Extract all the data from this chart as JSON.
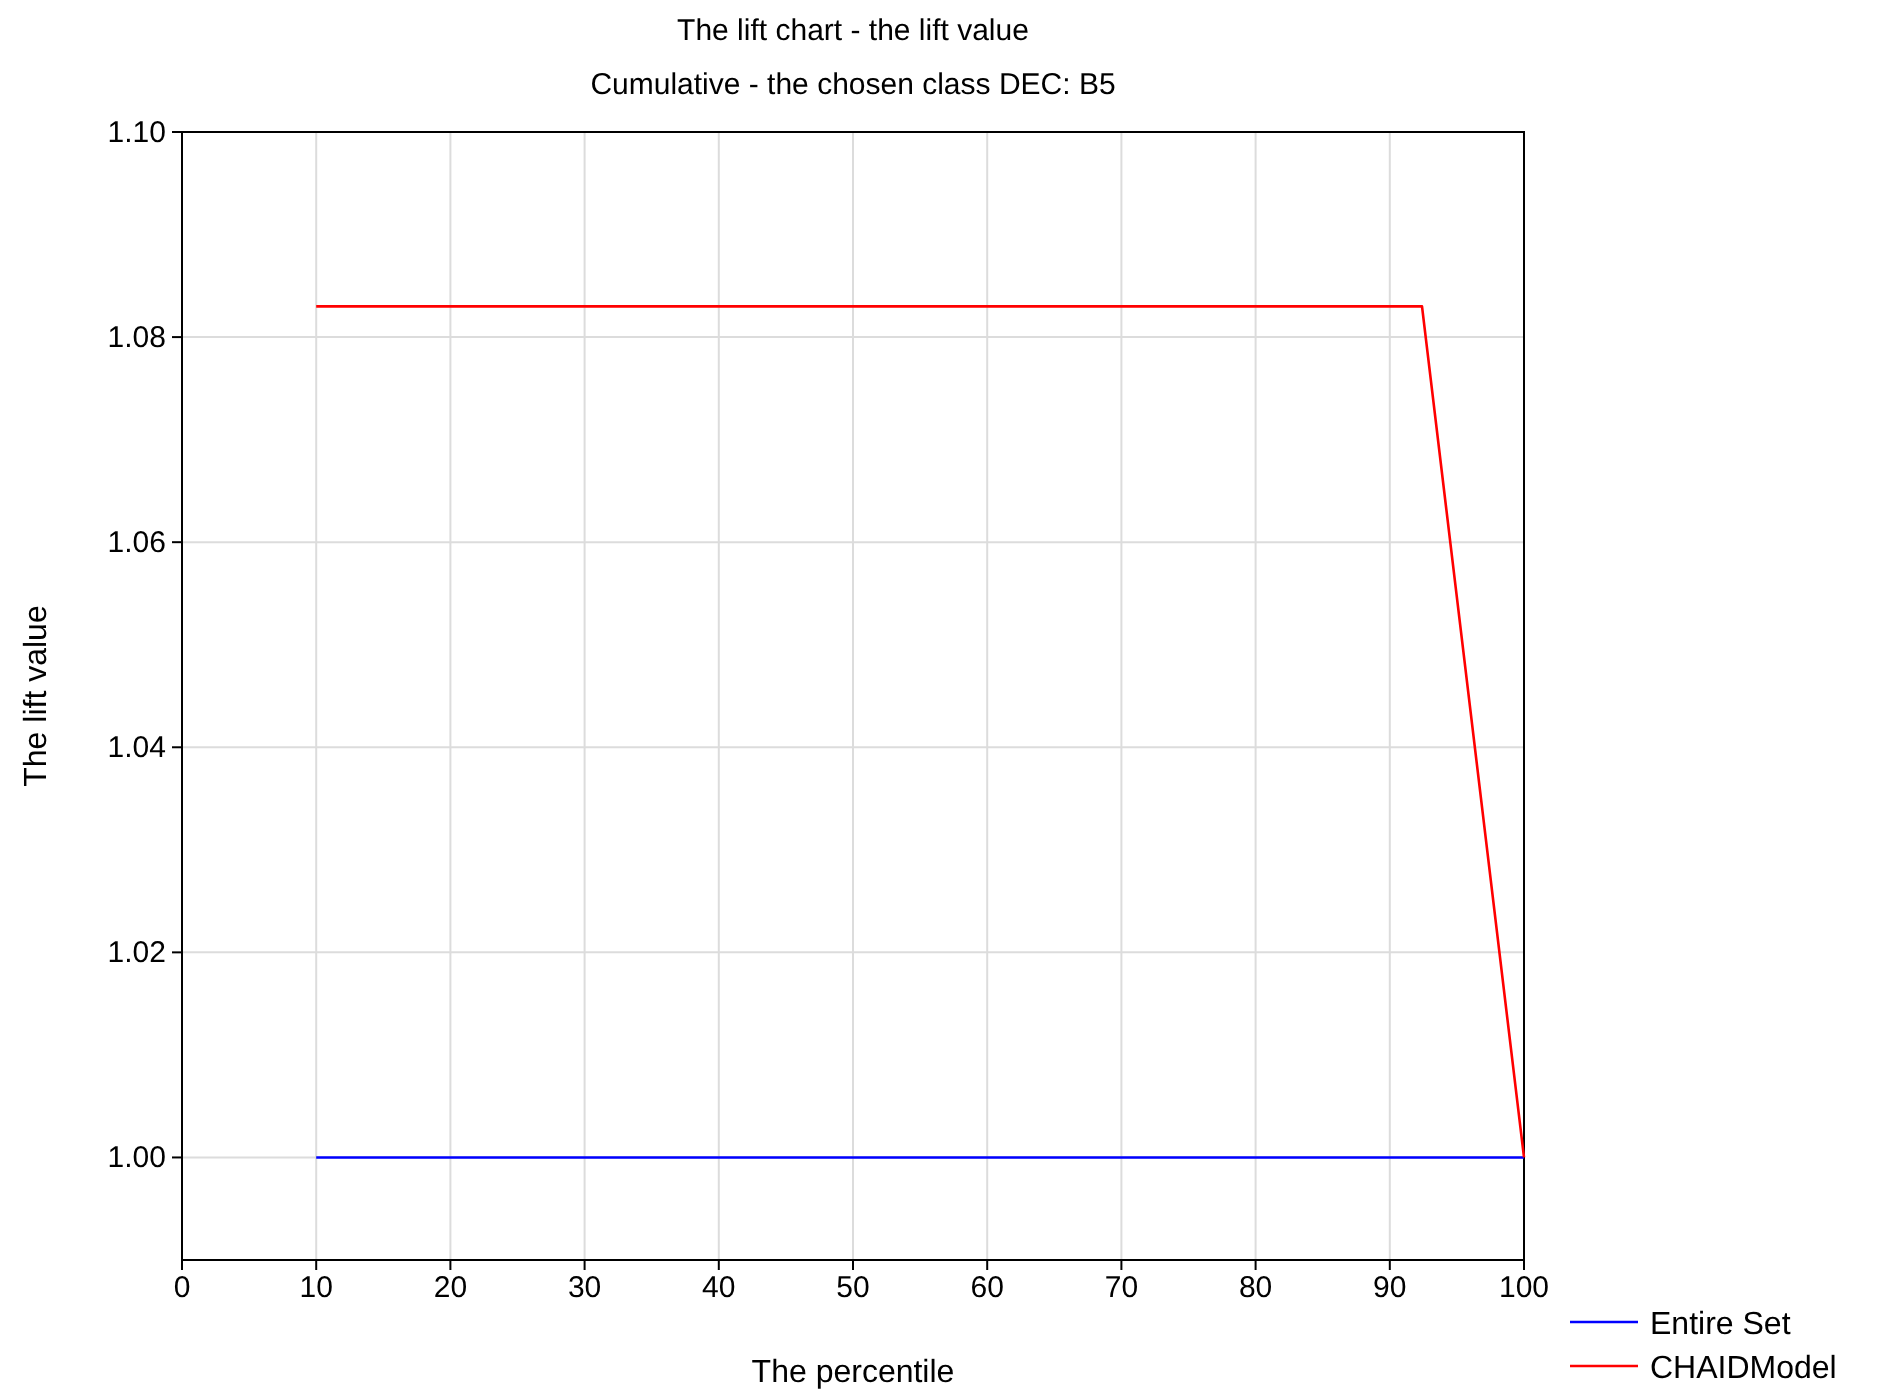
{
  "chart_data": {
    "type": "line",
    "title": "The lift chart - the lift value",
    "subtitle": "Cumulative - the chosen class DEC: B5",
    "xlabel": "The percentile",
    "ylabel": "The lift value",
    "xlim": [
      0,
      100
    ],
    "xticks": [
      0,
      10,
      20,
      30,
      40,
      50,
      60,
      70,
      80,
      90,
      100
    ],
    "ylim": [
      0.99,
      1.1
    ],
    "yticks": [
      {
        "value": 1.0,
        "label": "1.00"
      },
      {
        "value": 1.02,
        "label": "1.02"
      },
      {
        "value": 1.04,
        "label": "1.04"
      },
      {
        "value": 1.06,
        "label": "1.06"
      },
      {
        "value": 1.08,
        "label": "1.08"
      },
      {
        "value": 1.1,
        "label": "1.10"
      }
    ],
    "grid": true,
    "legend": "bottom right",
    "marker": "none",
    "line_style": "solid",
    "series": [
      {
        "name": "Entire Set",
        "color": "#0000ff",
        "x": [
          10,
          100
        ],
        "values": [
          1.0,
          1.0
        ]
      },
      {
        "name": "CHAIDModel",
        "color": "#ff0000",
        "x": [
          10,
          92.4,
          100
        ],
        "values": [
          1.083,
          1.083,
          1.0
        ]
      }
    ]
  }
}
